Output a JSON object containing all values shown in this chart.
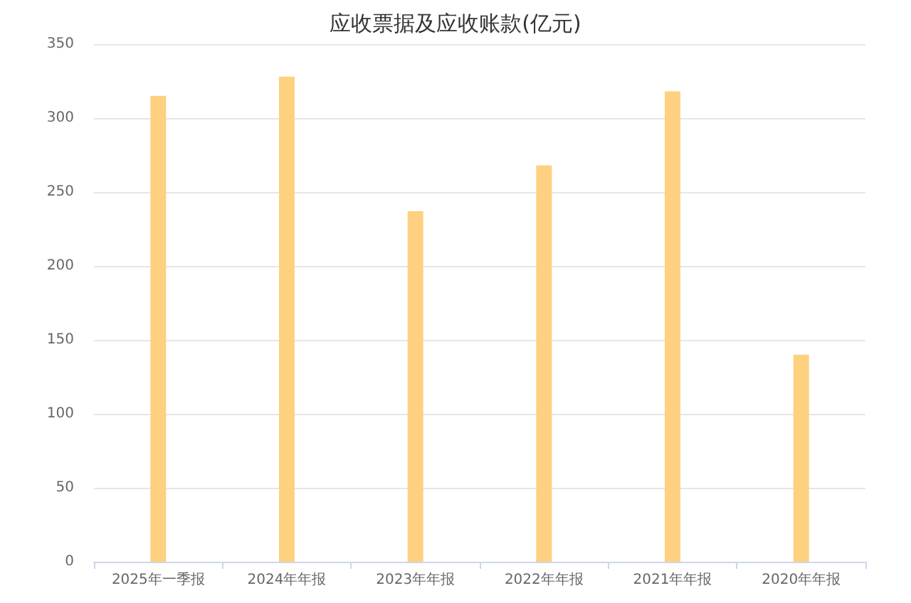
{
  "chart_data": {
    "type": "bar",
    "title": "应收票据及应收账款(亿元)",
    "categories": [
      "2025年一季报",
      "2024年年报",
      "2023年年报",
      "2022年年报",
      "2021年年报",
      "2020年年报"
    ],
    "values": [
      315,
      328,
      237,
      268,
      318,
      140
    ],
    "color": "#fdd180",
    "ylim": [
      0,
      350
    ],
    "yticks": [
      0,
      50,
      100,
      150,
      200,
      250,
      300,
      350
    ],
    "grid": "y"
  }
}
